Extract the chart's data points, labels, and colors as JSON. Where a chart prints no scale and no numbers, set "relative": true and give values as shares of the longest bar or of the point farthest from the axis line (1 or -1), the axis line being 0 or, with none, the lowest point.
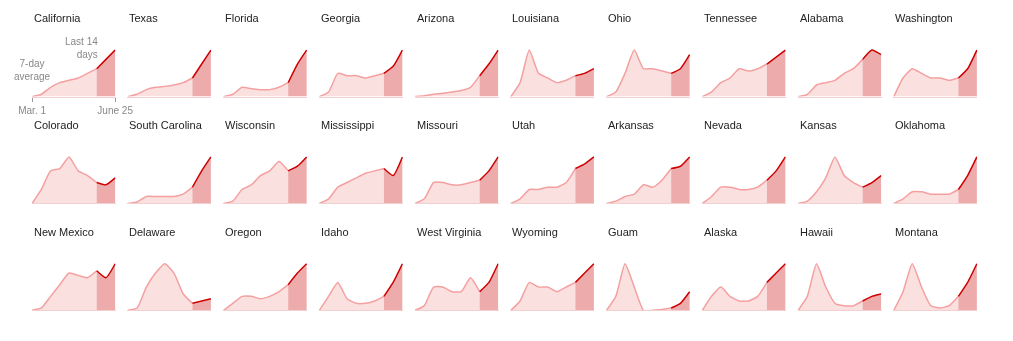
{
  "chart_data": [
    {
      "type": "area",
      "title": "California",
      "relative": true,
      "categories": [
        "Mar. 1",
        null,
        null,
        null,
        null,
        null,
        null,
        null,
        null,
        "June 25"
      ],
      "annotations": [
        "7-day average",
        "Last 14 days"
      ],
      "series": [
        {
          "color": "#f4a0a0",
          "values": [
            0,
            0.05,
            0.2,
            0.3,
            0.35,
            0.4,
            0.5,
            0.6,
            null,
            null
          ]
        },
        {
          "color": "#cc0000",
          "values": [
            null,
            null,
            null,
            null,
            null,
            null,
            null,
            0.6,
            0.8,
            1
          ]
        }
      ]
    },
    {
      "type": "area",
      "title": "Texas",
      "relative": true,
      "categories": [
        null,
        null,
        null,
        null,
        null,
        null,
        null,
        null,
        null,
        null
      ],
      "series": [
        {
          "color": "#f4a0a0",
          "values": [
            0,
            0.05,
            0.15,
            0.2,
            0.22,
            0.25,
            0.3,
            0.4,
            null,
            null
          ]
        },
        {
          "color": "#cc0000",
          "values": [
            null,
            null,
            null,
            null,
            null,
            null,
            null,
            0.4,
            0.7,
            1
          ]
        }
      ]
    },
    {
      "type": "area",
      "title": "Florida",
      "relative": true,
      "categories": [
        null,
        null,
        null,
        null,
        null,
        null,
        null,
        null,
        null,
        null
      ],
      "series": [
        {
          "color": "#f4a0a0",
          "values": [
            0,
            0.05,
            0.2,
            0.17,
            0.15,
            0.15,
            0.2,
            0.3,
            null,
            null
          ]
        },
        {
          "color": "#cc0000",
          "values": [
            null,
            null,
            null,
            null,
            null,
            null,
            null,
            0.3,
            0.7,
            1
          ]
        }
      ]
    },
    {
      "type": "area",
      "title": "Georgia",
      "relative": true,
      "categories": [
        null,
        null,
        null,
        null,
        null,
        null,
        null,
        null,
        null,
        null
      ],
      "series": [
        {
          "color": "#f4a0a0",
          "values": [
            0,
            0.1,
            0.5,
            0.45,
            0.45,
            0.4,
            0.45,
            0.5,
            null,
            null
          ]
        },
        {
          "color": "#cc0000",
          "values": [
            null,
            null,
            null,
            null,
            null,
            null,
            null,
            0.5,
            0.65,
            1
          ]
        }
      ]
    },
    {
      "type": "area",
      "title": "Arizona",
      "relative": true,
      "categories": [
        null,
        null,
        null,
        null,
        null,
        null,
        null,
        null,
        null,
        null
      ],
      "series": [
        {
          "color": "#f4a0a0",
          "values": [
            0,
            0.02,
            0.05,
            0.07,
            0.1,
            0.13,
            0.2,
            0.45,
            null,
            null
          ]
        },
        {
          "color": "#cc0000",
          "values": [
            null,
            null,
            null,
            null,
            null,
            null,
            null,
            0.45,
            0.7,
            1
          ]
        }
      ]
    },
    {
      "type": "area",
      "title": "Louisiana",
      "relative": true,
      "categories": [
        null,
        null,
        null,
        null,
        null,
        null,
        null,
        null,
        null,
        null
      ],
      "series": [
        {
          "color": "#f4a0a0",
          "values": [
            0,
            0.3,
            1,
            0.5,
            0.4,
            0.3,
            0.35,
            0.45,
            null,
            null
          ]
        },
        {
          "color": "#cc0000",
          "values": [
            null,
            null,
            null,
            null,
            null,
            null,
            null,
            0.45,
            0.5,
            0.6
          ]
        }
      ]
    },
    {
      "type": "area",
      "title": "Ohio",
      "relative": true,
      "categories": [
        null,
        null,
        null,
        null,
        null,
        null,
        null,
        null,
        null,
        null
      ],
      "series": [
        {
          "color": "#f4a0a0",
          "values": [
            0,
            0.1,
            0.5,
            1,
            0.6,
            0.6,
            0.55,
            0.5,
            null,
            null
          ]
        },
        {
          "color": "#cc0000",
          "values": [
            null,
            null,
            null,
            null,
            null,
            null,
            null,
            0.5,
            0.6,
            0.9
          ]
        }
      ]
    },
    {
      "type": "area",
      "title": "Tennessee",
      "relative": true,
      "categories": [
        null,
        null,
        null,
        null,
        null,
        null,
        null,
        null,
        null,
        null
      ],
      "series": [
        {
          "color": "#f4a0a0",
          "values": [
            0,
            0.1,
            0.3,
            0.4,
            0.6,
            0.55,
            0.6,
            0.7,
            null,
            null
          ]
        },
        {
          "color": "#cc0000",
          "values": [
            null,
            null,
            null,
            null,
            null,
            null,
            null,
            0.7,
            0.85,
            1
          ]
        }
      ]
    },
    {
      "type": "area",
      "title": "Alabama",
      "relative": true,
      "categories": [
        null,
        null,
        null,
        null,
        null,
        null,
        null,
        null,
        null,
        null
      ],
      "series": [
        {
          "color": "#f4a0a0",
          "values": [
            0,
            0.05,
            0.25,
            0.3,
            0.35,
            0.5,
            0.6,
            0.8,
            null,
            null
          ]
        },
        {
          "color": "#cc0000",
          "values": [
            null,
            null,
            null,
            null,
            null,
            null,
            null,
            0.8,
            1,
            0.9
          ]
        }
      ]
    },
    {
      "type": "area",
      "title": "Washington",
      "relative": true,
      "categories": [
        null,
        null,
        null,
        null,
        null,
        null,
        null,
        null,
        null,
        null
      ],
      "series": [
        {
          "color": "#f4a0a0",
          "values": [
            0,
            0.4,
            0.6,
            0.5,
            0.4,
            0.4,
            0.35,
            0.4,
            null,
            null
          ]
        },
        {
          "color": "#cc0000",
          "values": [
            null,
            null,
            null,
            null,
            null,
            null,
            null,
            0.4,
            0.6,
            1
          ]
        }
      ]
    },
    {
      "type": "area",
      "title": "Colorado",
      "relative": true,
      "categories": [
        null,
        null,
        null,
        null,
        null,
        null,
        null,
        null,
        null,
        null
      ],
      "series": [
        {
          "color": "#f4a0a0",
          "values": [
            0,
            0.3,
            0.7,
            0.75,
            1,
            0.7,
            0.6,
            0.45,
            null,
            null
          ]
        },
        {
          "color": "#cc0000",
          "values": [
            null,
            null,
            null,
            null,
            null,
            null,
            null,
            0.45,
            0.4,
            0.55
          ]
        }
      ]
    },
    {
      "type": "area",
      "title": "South Carolina",
      "relative": true,
      "categories": [
        null,
        null,
        null,
        null,
        null,
        null,
        null,
        null,
        null,
        null
      ],
      "series": [
        {
          "color": "#f4a0a0",
          "values": [
            0,
            0.03,
            0.15,
            0.15,
            0.15,
            0.15,
            0.2,
            0.35,
            null,
            null
          ]
        },
        {
          "color": "#cc0000",
          "values": [
            null,
            null,
            null,
            null,
            null,
            null,
            null,
            0.35,
            0.7,
            1
          ]
        }
      ]
    },
    {
      "type": "area",
      "title": "Wisconsin",
      "relative": true,
      "categories": [
        null,
        null,
        null,
        null,
        null,
        null,
        null,
        null,
        null,
        null
      ],
      "series": [
        {
          "color": "#f4a0a0",
          "values": [
            0,
            0.05,
            0.3,
            0.4,
            0.6,
            0.7,
            0.9,
            0.7,
            null,
            null
          ]
        },
        {
          "color": "#cc0000",
          "values": [
            null,
            null,
            null,
            null,
            null,
            null,
            null,
            0.7,
            0.8,
            1
          ]
        }
      ]
    },
    {
      "type": "area",
      "title": "Mississippi",
      "relative": true,
      "categories": [
        null,
        null,
        null,
        null,
        null,
        null,
        null,
        null,
        null,
        null
      ],
      "series": [
        {
          "color": "#f4a0a0",
          "values": [
            0,
            0.1,
            0.35,
            0.45,
            0.55,
            0.65,
            0.7,
            0.75,
            null,
            null
          ]
        },
        {
          "color": "#cc0000",
          "values": [
            null,
            null,
            null,
            null,
            null,
            null,
            null,
            0.75,
            0.6,
            1
          ]
        }
      ]
    },
    {
      "type": "area",
      "title": "Missouri",
      "relative": true,
      "categories": [
        null,
        null,
        null,
        null,
        null,
        null,
        null,
        null,
        null,
        null
      ],
      "series": [
        {
          "color": "#f4a0a0",
          "values": [
            0,
            0.1,
            0.45,
            0.45,
            0.4,
            0.4,
            0.45,
            0.5,
            null,
            null
          ]
        },
        {
          "color": "#cc0000",
          "values": [
            null,
            null,
            null,
            null,
            null,
            null,
            null,
            0.5,
            0.7,
            1
          ]
        }
      ]
    },
    {
      "type": "area",
      "title": "Utah",
      "relative": true,
      "categories": [
        null,
        null,
        null,
        null,
        null,
        null,
        null,
        null,
        null,
        null
      ],
      "series": [
        {
          "color": "#f4a0a0",
          "values": [
            0,
            0.1,
            0.3,
            0.3,
            0.35,
            0.35,
            0.45,
            0.75,
            null,
            null
          ]
        },
        {
          "color": "#cc0000",
          "values": [
            null,
            null,
            null,
            null,
            null,
            null,
            null,
            0.75,
            0.85,
            1
          ]
        }
      ]
    },
    {
      "type": "area",
      "title": "Arkansas",
      "relative": true,
      "categories": [
        null,
        null,
        null,
        null,
        null,
        null,
        null,
        null,
        null,
        null
      ],
      "series": [
        {
          "color": "#f4a0a0",
          "values": [
            0,
            0.05,
            0.15,
            0.2,
            0.4,
            0.35,
            0.5,
            0.75,
            null,
            null
          ]
        },
        {
          "color": "#cc0000",
          "values": [
            null,
            null,
            null,
            null,
            null,
            null,
            null,
            0.75,
            0.8,
            1
          ]
        }
      ]
    },
    {
      "type": "area",
      "title": "Nevada",
      "relative": true,
      "categories": [
        null,
        null,
        null,
        null,
        null,
        null,
        null,
        null,
        null,
        null
      ],
      "series": [
        {
          "color": "#f4a0a0",
          "values": [
            0,
            0.15,
            0.35,
            0.35,
            0.3,
            0.3,
            0.35,
            0.5,
            null,
            null
          ]
        },
        {
          "color": "#cc0000",
          "values": [
            null,
            null,
            null,
            null,
            null,
            null,
            null,
            0.5,
            0.7,
            1
          ]
        }
      ]
    },
    {
      "type": "area",
      "title": "Kansas",
      "relative": true,
      "categories": [
        null,
        null,
        null,
        null,
        null,
        null,
        null,
        null,
        null,
        null
      ],
      "series": [
        {
          "color": "#f4a0a0",
          "values": [
            0,
            0.05,
            0.25,
            0.55,
            1,
            0.6,
            0.45,
            0.35,
            null,
            null
          ]
        },
        {
          "color": "#cc0000",
          "values": [
            null,
            null,
            null,
            null,
            null,
            null,
            null,
            0.35,
            0.45,
            0.6
          ]
        }
      ]
    },
    {
      "type": "area",
      "title": "Oklahoma",
      "relative": true,
      "categories": [
        null,
        null,
        null,
        null,
        null,
        null,
        null,
        null,
        null,
        null
      ],
      "series": [
        {
          "color": "#f4a0a0",
          "values": [
            0,
            0.1,
            0.25,
            0.25,
            0.2,
            0.2,
            0.2,
            0.3,
            null,
            null
          ]
        },
        {
          "color": "#cc0000",
          "values": [
            null,
            null,
            null,
            null,
            null,
            null,
            null,
            0.3,
            0.6,
            1
          ]
        }
      ]
    },
    {
      "type": "area",
      "title": "New Mexico",
      "relative": true,
      "categories": [
        null,
        null,
        null,
        null,
        null,
        null,
        null,
        null,
        null,
        null
      ],
      "series": [
        {
          "color": "#f4a0a0",
          "values": [
            0,
            0.05,
            0.3,
            0.55,
            0.8,
            0.75,
            0.7,
            0.85,
            null,
            null
          ]
        },
        {
          "color": "#cc0000",
          "values": [
            null,
            null,
            null,
            null,
            null,
            null,
            null,
            0.85,
            0.7,
            1
          ]
        }
      ]
    },
    {
      "type": "area",
      "title": "Delaware",
      "relative": true,
      "categories": [
        null,
        null,
        null,
        null,
        null,
        null,
        null,
        null,
        null,
        null
      ],
      "series": [
        {
          "color": "#f4a0a0",
          "values": [
            0,
            0.05,
            0.5,
            0.8,
            1,
            0.8,
            0.35,
            0.15,
            null,
            null
          ]
        },
        {
          "color": "#cc0000",
          "values": [
            null,
            null,
            null,
            null,
            null,
            null,
            null,
            0.15,
            0.2,
            0.25
          ]
        }
      ]
    },
    {
      "type": "area",
      "title": "Oregon",
      "relative": true,
      "categories": [
        null,
        null,
        null,
        null,
        null,
        null,
        null,
        null,
        null,
        null
      ],
      "series": [
        {
          "color": "#f4a0a0",
          "values": [
            0,
            0.15,
            0.3,
            0.3,
            0.25,
            0.3,
            0.4,
            0.55,
            null,
            null
          ]
        },
        {
          "color": "#cc0000",
          "values": [
            null,
            null,
            null,
            null,
            null,
            null,
            null,
            0.55,
            0.8,
            1
          ]
        }
      ]
    },
    {
      "type": "area",
      "title": "Idaho",
      "relative": true,
      "categories": [
        null,
        null,
        null,
        null,
        null,
        null,
        null,
        null,
        null,
        null
      ],
      "series": [
        {
          "color": "#f4a0a0",
          "values": [
            0,
            0.3,
            0.6,
            0.25,
            0.15,
            0.15,
            0.2,
            0.3,
            null,
            null
          ]
        },
        {
          "color": "#cc0000",
          "values": [
            null,
            null,
            null,
            null,
            null,
            null,
            null,
            0.3,
            0.6,
            1
          ]
        }
      ]
    },
    {
      "type": "area",
      "title": "West Virginia",
      "relative": true,
      "categories": [
        null,
        null,
        null,
        null,
        null,
        null,
        null,
        null,
        null,
        null
      ],
      "series": [
        {
          "color": "#f4a0a0",
          "values": [
            0,
            0.1,
            0.5,
            0.5,
            0.4,
            0.4,
            0.7,
            0.4,
            null,
            null
          ]
        },
        {
          "color": "#cc0000",
          "values": [
            null,
            null,
            null,
            null,
            null,
            null,
            null,
            0.4,
            0.6,
            1
          ]
        }
      ]
    },
    {
      "type": "area",
      "title": "Wyoming",
      "relative": true,
      "categories": [
        null,
        null,
        null,
        null,
        null,
        null,
        null,
        null,
        null,
        null
      ],
      "series": [
        {
          "color": "#f4a0a0",
          "values": [
            0,
            0.2,
            0.6,
            0.5,
            0.5,
            0.4,
            0.5,
            0.6,
            null,
            null
          ]
        },
        {
          "color": "#cc0000",
          "values": [
            null,
            null,
            null,
            null,
            null,
            null,
            null,
            0.6,
            0.8,
            1
          ]
        }
      ]
    },
    {
      "type": "area",
      "title": "Guam",
      "relative": true,
      "categories": [
        null,
        null,
        null,
        null,
        null,
        null,
        null,
        null,
        null,
        null
      ],
      "series": [
        {
          "color": "#f4a0a0",
          "values": [
            0,
            0.3,
            1,
            0.5,
            0,
            0,
            0.02,
            0.05,
            null,
            null
          ]
        },
        {
          "color": "#cc0000",
          "values": [
            null,
            null,
            null,
            null,
            null,
            null,
            null,
            0.05,
            0.15,
            0.4
          ]
        }
      ]
    },
    {
      "type": "area",
      "title": "Alaska",
      "relative": true,
      "categories": [
        null,
        null,
        null,
        null,
        null,
        null,
        null,
        null,
        null,
        null
      ],
      "series": [
        {
          "color": "#f4a0a0",
          "values": [
            0,
            0.3,
            0.5,
            0.3,
            0.2,
            0.2,
            0.3,
            0.6,
            null,
            null
          ]
        },
        {
          "color": "#cc0000",
          "values": [
            null,
            null,
            null,
            null,
            null,
            null,
            null,
            0.6,
            0.8,
            1
          ]
        }
      ]
    },
    {
      "type": "area",
      "title": "Hawaii",
      "relative": true,
      "categories": [
        null,
        null,
        null,
        null,
        null,
        null,
        null,
        null,
        null,
        null
      ],
      "series": [
        {
          "color": "#f4a0a0",
          "values": [
            0,
            0.3,
            1,
            0.5,
            0.15,
            0.1,
            0.1,
            0.2,
            null,
            null
          ]
        },
        {
          "color": "#cc0000",
          "values": [
            null,
            null,
            null,
            null,
            null,
            null,
            null,
            0.2,
            0.3,
            0.35
          ]
        }
      ]
    },
    {
      "type": "area",
      "title": "Montana",
      "relative": true,
      "categories": [
        null,
        null,
        null,
        null,
        null,
        null,
        null,
        null,
        null,
        null
      ],
      "series": [
        {
          "color": "#f4a0a0",
          "values": [
            0,
            0.4,
            1,
            0.5,
            0.1,
            0.05,
            0.1,
            0.3,
            null,
            null
          ]
        },
        {
          "color": "#cc0000",
          "values": [
            null,
            null,
            null,
            null,
            null,
            null,
            null,
            0.3,
            0.6,
            1
          ]
        }
      ]
    }
  ]
}
